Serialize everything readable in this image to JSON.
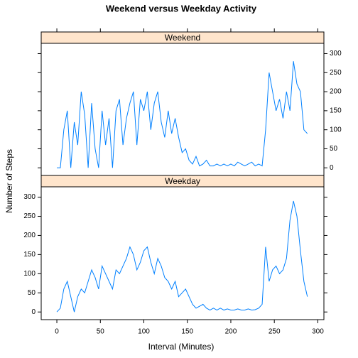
{
  "title": "Weekend versus Weekday Activity",
  "x_label": "Interval (Minutes)",
  "y_label": "Number of Steps",
  "chart_data": [
    {
      "type": "line",
      "panel": "Weekend",
      "color": "#0080ff",
      "x": [
        0,
        4,
        8,
        12,
        16,
        20,
        24,
        28,
        32,
        36,
        40,
        44,
        48,
        52,
        56,
        60,
        64,
        68,
        72,
        76,
        80,
        84,
        88,
        92,
        96,
        100,
        104,
        108,
        112,
        116,
        120,
        124,
        128,
        132,
        136,
        140,
        144,
        148,
        152,
        156,
        160,
        164,
        168,
        172,
        176,
        180,
        184,
        188,
        192,
        196,
        200,
        204,
        208,
        212,
        216,
        220,
        224,
        228,
        232,
        236,
        240,
        244,
        248,
        252,
        256,
        260,
        264,
        268,
        272,
        276,
        280,
        284,
        288
      ],
      "values": [
        0,
        0,
        100,
        150,
        0,
        120,
        60,
        200,
        140,
        0,
        170,
        50,
        0,
        150,
        60,
        130,
        0,
        150,
        180,
        60,
        130,
        170,
        200,
        60,
        180,
        150,
        200,
        100,
        170,
        200,
        120,
        80,
        150,
        90,
        130,
        80,
        40,
        50,
        20,
        10,
        30,
        5,
        10,
        20,
        5,
        5,
        10,
        5,
        10,
        5,
        10,
        5,
        15,
        10,
        5,
        10,
        15,
        5,
        10,
        5,
        100,
        250,
        200,
        150,
        180,
        130,
        200,
        150,
        280,
        220,
        200,
        100,
        90
      ],
      "xlim": [
        -18,
        307
      ],
      "ylim": [
        -20,
        327
      ],
      "xticks": [
        0,
        50,
        100,
        150,
        200,
        250,
        300
      ],
      "yticks": [
        0,
        50,
        100,
        150,
        200,
        250,
        300
      ]
    },
    {
      "type": "line",
      "panel": "Weekday",
      "color": "#0080ff",
      "x": [
        0,
        4,
        8,
        12,
        16,
        20,
        24,
        28,
        32,
        36,
        40,
        44,
        48,
        52,
        56,
        60,
        64,
        68,
        72,
        76,
        80,
        84,
        88,
        92,
        96,
        100,
        104,
        108,
        112,
        116,
        120,
        124,
        128,
        132,
        136,
        140,
        144,
        148,
        152,
        156,
        160,
        164,
        168,
        172,
        176,
        180,
        184,
        188,
        192,
        196,
        200,
        204,
        208,
        212,
        216,
        220,
        224,
        228,
        232,
        236,
        240,
        244,
        248,
        252,
        256,
        260,
        264,
        268,
        272,
        276,
        280,
        284,
        288
      ],
      "values": [
        0,
        10,
        60,
        80,
        40,
        0,
        40,
        60,
        50,
        80,
        110,
        90,
        60,
        120,
        100,
        80,
        60,
        110,
        100,
        120,
        140,
        170,
        150,
        110,
        130,
        160,
        170,
        130,
        100,
        140,
        120,
        90,
        80,
        60,
        80,
        40,
        50,
        60,
        40,
        20,
        10,
        15,
        20,
        10,
        5,
        10,
        5,
        10,
        5,
        8,
        5,
        5,
        8,
        5,
        5,
        8,
        5,
        6,
        10,
        20,
        170,
        80,
        110,
        120,
        100,
        110,
        140,
        240,
        290,
        250,
        160,
        80,
        40
      ],
      "xlim": [
        -18,
        307
      ],
      "ylim": [
        -20,
        327
      ],
      "xticks": [
        0,
        50,
        100,
        150,
        200,
        250,
        300
      ],
      "yticks": [
        0,
        50,
        100,
        150,
        200,
        250,
        300
      ]
    }
  ]
}
